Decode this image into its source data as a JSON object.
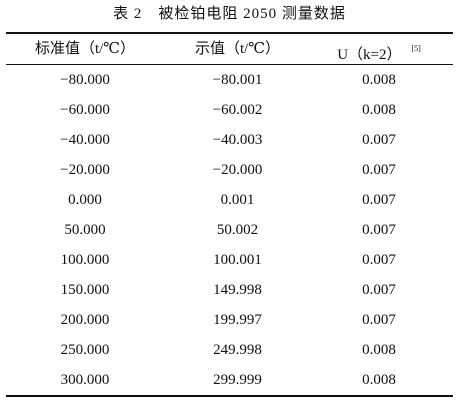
{
  "title": "表 2　被检铂电阻 2050 测量数据",
  "table": {
    "header": [
      "标准值（t/℃）",
      "示值（t/℃）",
      "U（k=2）"
    ],
    "header_ref": "[5]",
    "rows": [
      [
        "−80.000",
        "−80.001",
        "0.008"
      ],
      [
        "−60.000",
        "−60.002",
        "0.008"
      ],
      [
        "−40.000",
        "−40.003",
        "0.007"
      ],
      [
        "−20.000",
        "−20.000",
        "0.007"
      ],
      [
        "0.000",
        "0.001",
        "0.007"
      ],
      [
        "50.000",
        "50.002",
        "0.007"
      ],
      [
        "100.000",
        "100.001",
        "0.007"
      ],
      [
        "150.000",
        "149.998",
        "0.007"
      ],
      [
        "200.000",
        "199.997",
        "0.007"
      ],
      [
        "250.000",
        "249.998",
        "0.008"
      ],
      [
        "300.000",
        "299.999",
        "0.008"
      ]
    ]
  }
}
